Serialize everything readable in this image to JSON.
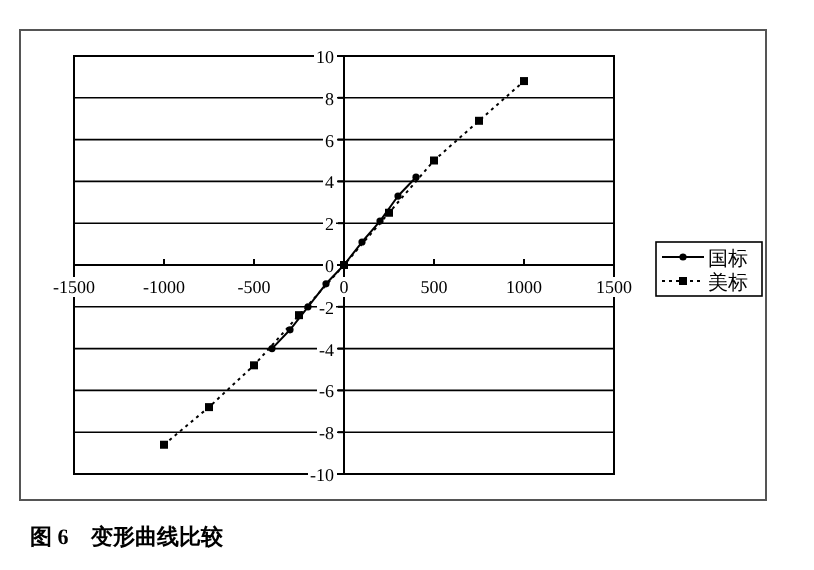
{
  "chart_data": {
    "type": "line",
    "xlim": [
      -1500,
      1500
    ],
    "xticks": [
      -1500,
      -1000,
      -500,
      0,
      500,
      1000,
      1500
    ],
    "ylim": [
      -10,
      10
    ],
    "yticks": [
      -10,
      -8,
      -6,
      -4,
      -2,
      0,
      2,
      4,
      6,
      8,
      10
    ],
    "grid": "y",
    "legend": "right",
    "series": [
      {
        "name": "国标",
        "color": "#000000",
        "marker": "circle",
        "line_style": "solid",
        "x": [
          -400,
          -300,
          -200,
          -100,
          0,
          100,
          200,
          300,
          400
        ],
        "values": [
          -4.0,
          -3.1,
          -2.0,
          -0.9,
          0,
          1.1,
          2.1,
          3.3,
          4.2
        ]
      },
      {
        "name": "美标",
        "color": "#000000",
        "marker": "square",
        "line_style": "dotted",
        "x": [
          -1000,
          -750,
          -500,
          -250,
          0,
          250,
          500,
          750,
          1000
        ],
        "values": [
          -8.6,
          -6.8,
          -4.8,
          -2.4,
          0,
          2.5,
          5.0,
          6.9,
          8.8
        ]
      }
    ],
    "annotations": [
      "图 6　变形曲线比较"
    ]
  }
}
